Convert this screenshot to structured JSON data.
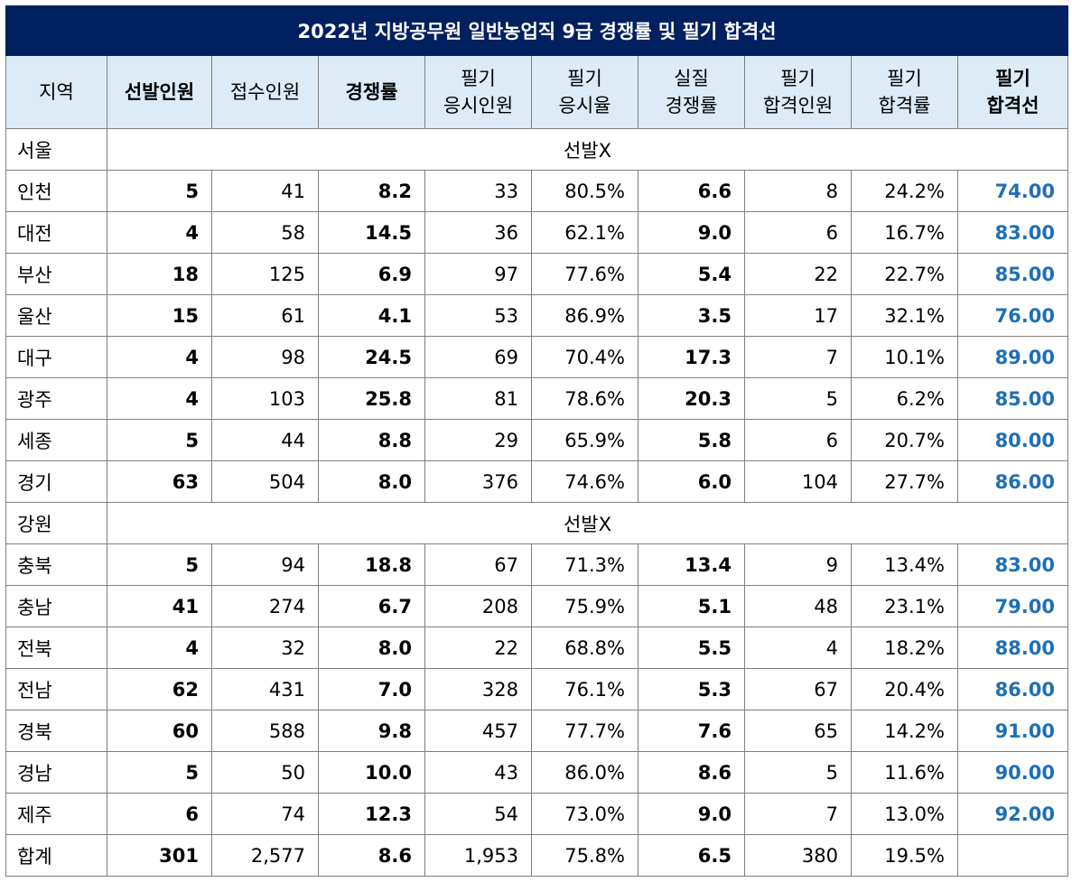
{
  "title": "2022년 지방공무원 일반농업직 9급 경쟁률 및 필기 합격선",
  "headers": [
    [
      "지역"
    ],
    [
      "선발인원"
    ],
    [
      "접수인원"
    ],
    [
      "경쟁률"
    ],
    [
      "필기",
      "응시인원"
    ],
    [
      "필기",
      "응시율"
    ],
    [
      "실질",
      "경쟁률"
    ],
    [
      "필기",
      "합격인원"
    ],
    [
      "필기",
      "합격률"
    ],
    [
      "필기",
      "합격선"
    ]
  ],
  "no_selection_label": "선발X",
  "rows": [
    {
      "region": "서울",
      "span": true
    },
    {
      "region": "인천",
      "cells": [
        "5",
        "41",
        "8.2",
        "33",
        "80.5%",
        "6.6",
        "8",
        "24.2%",
        "74.00"
      ]
    },
    {
      "region": "대전",
      "cells": [
        "4",
        "58",
        "14.5",
        "36",
        "62.1%",
        "9.0",
        "6",
        "16.7%",
        "83.00"
      ]
    },
    {
      "region": "부산",
      "cells": [
        "18",
        "125",
        "6.9",
        "97",
        "77.6%",
        "5.4",
        "22",
        "22.7%",
        "85.00"
      ]
    },
    {
      "region": "울산",
      "cells": [
        "15",
        "61",
        "4.1",
        "53",
        "86.9%",
        "3.5",
        "17",
        "32.1%",
        "76.00"
      ]
    },
    {
      "region": "대구",
      "cells": [
        "4",
        "98",
        "24.5",
        "69",
        "70.4%",
        "17.3",
        "7",
        "10.1%",
        "89.00"
      ]
    },
    {
      "region": "광주",
      "cells": [
        "4",
        "103",
        "25.8",
        "81",
        "78.6%",
        "20.3",
        "5",
        "6.2%",
        "85.00"
      ]
    },
    {
      "region": "세종",
      "cells": [
        "5",
        "44",
        "8.8",
        "29",
        "65.9%",
        "5.8",
        "6",
        "20.7%",
        "80.00"
      ]
    },
    {
      "region": "경기",
      "cells": [
        "63",
        "504",
        "8.0",
        "376",
        "74.6%",
        "6.0",
        "104",
        "27.7%",
        "86.00"
      ]
    },
    {
      "region": "강원",
      "span": true
    },
    {
      "region": "충북",
      "cells": [
        "5",
        "94",
        "18.8",
        "67",
        "71.3%",
        "13.4",
        "9",
        "13.4%",
        "83.00"
      ]
    },
    {
      "region": "충남",
      "cells": [
        "41",
        "274",
        "6.7",
        "208",
        "75.9%",
        "5.1",
        "48",
        "23.1%",
        "79.00"
      ]
    },
    {
      "region": "전북",
      "cells": [
        "4",
        "32",
        "8.0",
        "22",
        "68.8%",
        "5.5",
        "4",
        "18.2%",
        "88.00"
      ]
    },
    {
      "region": "전남",
      "cells": [
        "62",
        "431",
        "7.0",
        "328",
        "76.1%",
        "5.3",
        "67",
        "20.4%",
        "86.00"
      ]
    },
    {
      "region": "경북",
      "cells": [
        "60",
        "588",
        "9.8",
        "457",
        "77.7%",
        "7.6",
        "65",
        "14.2%",
        "91.00"
      ]
    },
    {
      "region": "경남",
      "cells": [
        "5",
        "50",
        "10.0",
        "43",
        "86.0%",
        "8.6",
        "5",
        "11.6%",
        "90.00"
      ]
    },
    {
      "region": "제주",
      "cells": [
        "6",
        "74",
        "12.3",
        "54",
        "73.0%",
        "9.0",
        "7",
        "13.0%",
        "92.00"
      ]
    },
    {
      "region": "합계",
      "cells": [
        "301",
        "2,577",
        "8.6",
        "1,953",
        "75.8%",
        "6.5",
        "380",
        "19.5%",
        ""
      ]
    }
  ],
  "colors": {
    "title_bg": "#002060",
    "header_bg": "#ddebf7",
    "cutoff_text": "#1f6fb5",
    "border": "#7f7f7f"
  }
}
